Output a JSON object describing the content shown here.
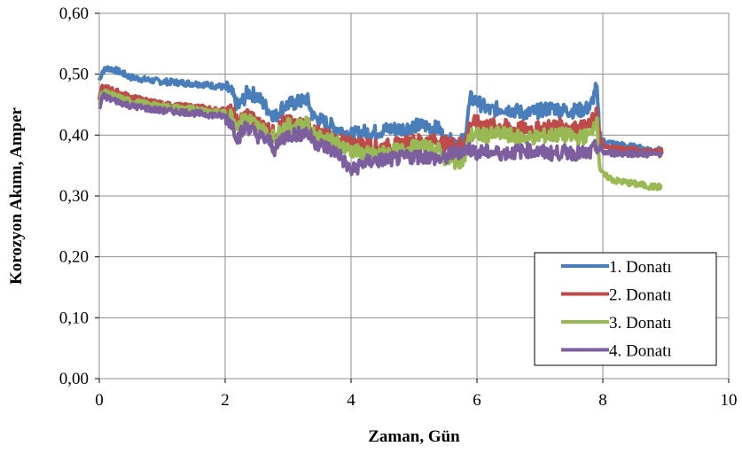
{
  "chart_data": {
    "type": "line",
    "title": "",
    "xlabel": "Zaman, Gün",
    "ylabel": "Korozyon Akımı, Amper",
    "xlim": [
      0,
      10
    ],
    "ylim": [
      0,
      0.6
    ],
    "x_ticks": [
      0,
      2,
      4,
      6,
      8,
      10
    ],
    "x_tick_labels": [
      "0",
      "2",
      "4",
      "6",
      "8",
      "10"
    ],
    "y_ticks": [
      0,
      0.1,
      0.2,
      0.3,
      0.4,
      0.5,
      0.6
    ],
    "y_tick_labels": [
      "0,00",
      "0,10",
      "0,20",
      "0,30",
      "0,40",
      "0,50",
      "0,60"
    ],
    "grid": true,
    "legend_position": "bottom-right",
    "series": [
      {
        "name": "1. Donatı",
        "color": "#4a7ebb",
        "x": [
          0,
          0.05,
          0.15,
          0.3,
          0.5,
          0.8,
          1.0,
          1.3,
          1.6,
          1.9,
          2.0,
          2.1,
          2.2,
          2.3,
          2.35,
          2.5,
          2.7,
          2.8,
          2.9,
          3.0,
          3.2,
          3.3,
          3.4,
          3.6,
          3.8,
          4.0,
          4.2,
          4.4,
          4.6,
          4.8,
          5.0,
          5.2,
          5.4,
          5.5,
          5.6,
          5.8,
          5.85,
          5.9,
          6.0,
          6.2,
          6.4,
          6.6,
          6.8,
          7.0,
          7.2,
          7.4,
          7.6,
          7.8,
          7.9,
          7.95,
          8.0,
          8.2,
          8.5,
          8.8,
          8.95
        ],
        "y": [
          0.49,
          0.505,
          0.51,
          0.505,
          0.495,
          0.49,
          0.488,
          0.486,
          0.484,
          0.48,
          0.478,
          0.47,
          0.445,
          0.46,
          0.47,
          0.465,
          0.44,
          0.43,
          0.445,
          0.45,
          0.455,
          0.46,
          0.43,
          0.42,
          0.41,
          0.4,
          0.405,
          0.405,
          0.41,
          0.41,
          0.415,
          0.415,
          0.41,
          0.39,
          0.39,
          0.39,
          0.43,
          0.46,
          0.455,
          0.44,
          0.445,
          0.44,
          0.435,
          0.44,
          0.445,
          0.44,
          0.44,
          0.445,
          0.48,
          0.4,
          0.39,
          0.385,
          0.38,
          0.375,
          0.375
        ]
      },
      {
        "name": "2. Donatı",
        "color": "#be4b48",
        "x": [
          0,
          0.05,
          0.15,
          0.3,
          0.5,
          0.8,
          1.0,
          1.3,
          1.6,
          1.9,
          2.0,
          2.1,
          2.2,
          2.3,
          2.35,
          2.5,
          2.7,
          2.8,
          2.9,
          3.0,
          3.2,
          3.3,
          3.4,
          3.6,
          3.8,
          4.0,
          4.2,
          4.4,
          4.6,
          4.8,
          5.0,
          5.2,
          5.4,
          5.5,
          5.6,
          5.8,
          5.85,
          5.9,
          6.0,
          6.2,
          6.4,
          6.6,
          6.8,
          7.0,
          7.2,
          7.4,
          7.6,
          7.8,
          7.9,
          7.95,
          8.0,
          8.2,
          8.5,
          8.8,
          8.95
        ],
        "y": [
          0.46,
          0.478,
          0.476,
          0.47,
          0.462,
          0.455,
          0.45,
          0.447,
          0.445,
          0.44,
          0.44,
          0.438,
          0.42,
          0.43,
          0.435,
          0.42,
          0.41,
          0.4,
          0.42,
          0.42,
          0.418,
          0.42,
          0.405,
          0.4,
          0.39,
          0.385,
          0.385,
          0.38,
          0.382,
          0.385,
          0.39,
          0.39,
          0.39,
          0.385,
          0.385,
          0.385,
          0.4,
          0.42,
          0.42,
          0.415,
          0.415,
          0.41,
          0.41,
          0.41,
          0.415,
          0.415,
          0.41,
          0.415,
          0.44,
          0.39,
          0.38,
          0.378,
          0.375,
          0.372,
          0.375
        ]
      },
      {
        "name": "3. Donatı",
        "color": "#98b954",
        "x": [
          0,
          0.05,
          0.15,
          0.3,
          0.5,
          0.8,
          1.0,
          1.3,
          1.6,
          1.9,
          2.0,
          2.1,
          2.2,
          2.3,
          2.35,
          2.5,
          2.7,
          2.8,
          2.9,
          3.0,
          3.2,
          3.3,
          3.4,
          3.6,
          3.8,
          4.0,
          4.2,
          4.4,
          4.6,
          4.8,
          5.0,
          5.2,
          5.4,
          5.5,
          5.6,
          5.8,
          5.85,
          5.9,
          6.0,
          6.2,
          6.4,
          6.6,
          6.8,
          7.0,
          7.2,
          7.4,
          7.6,
          7.8,
          7.9,
          7.95,
          8.0,
          8.2,
          8.5,
          8.8,
          8.95
        ],
        "y": [
          0.45,
          0.47,
          0.468,
          0.462,
          0.455,
          0.45,
          0.447,
          0.444,
          0.442,
          0.437,
          0.436,
          0.432,
          0.415,
          0.425,
          0.43,
          0.415,
          0.4,
          0.395,
          0.41,
          0.415,
          0.415,
          0.418,
          0.4,
          0.395,
          0.385,
          0.375,
          0.37,
          0.368,
          0.372,
          0.375,
          0.38,
          0.38,
          0.375,
          0.36,
          0.355,
          0.36,
          0.385,
          0.4,
          0.4,
          0.4,
          0.402,
          0.398,
          0.395,
          0.398,
          0.4,
          0.4,
          0.395,
          0.4,
          0.43,
          0.35,
          0.335,
          0.325,
          0.32,
          0.315,
          0.315
        ]
      },
      {
        "name": "4. Donatı",
        "color": "#7d5fa0",
        "x": [
          0,
          0.05,
          0.15,
          0.3,
          0.5,
          0.8,
          1.0,
          1.3,
          1.6,
          1.9,
          2.0,
          2.1,
          2.2,
          2.3,
          2.35,
          2.5,
          2.7,
          2.8,
          2.9,
          3.0,
          3.2,
          3.3,
          3.4,
          3.6,
          3.8,
          4.0,
          4.2,
          4.4,
          4.6,
          4.8,
          5.0,
          5.2,
          5.4,
          5.5,
          5.6,
          5.8,
          5.85,
          5.9,
          6.0,
          6.2,
          6.4,
          6.6,
          6.8,
          7.0,
          7.2,
          7.4,
          7.6,
          7.8,
          7.9,
          7.95,
          8.0,
          8.2,
          8.5,
          8.8,
          8.95
        ],
        "y": [
          0.44,
          0.465,
          0.46,
          0.455,
          0.448,
          0.443,
          0.44,
          0.438,
          0.435,
          0.432,
          0.43,
          0.42,
          0.395,
          0.41,
          0.415,
          0.4,
          0.39,
          0.375,
          0.395,
          0.4,
          0.402,
          0.405,
          0.39,
          0.38,
          0.37,
          0.34,
          0.355,
          0.358,
          0.36,
          0.362,
          0.365,
          0.365,
          0.36,
          0.362,
          0.37,
          0.375,
          0.378,
          0.376,
          0.372,
          0.372,
          0.37,
          0.372,
          0.375,
          0.372,
          0.37,
          0.372,
          0.37,
          0.37,
          0.382,
          0.375,
          0.372,
          0.37,
          0.37,
          0.368,
          0.37
        ]
      }
    ]
  }
}
